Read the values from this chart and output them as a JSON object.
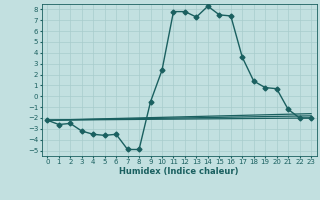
{
  "xlabel": "Humidex (Indice chaleur)",
  "background_color": "#c2e0e0",
  "grid_color": "#a8cccc",
  "line_color": "#1a6060",
  "xlim": [
    -0.5,
    23.5
  ],
  "ylim": [
    -5.5,
    8.5
  ],
  "xticks": [
    0,
    1,
    2,
    3,
    4,
    5,
    6,
    7,
    8,
    9,
    10,
    11,
    12,
    13,
    14,
    15,
    16,
    17,
    18,
    19,
    20,
    21,
    22,
    23
  ],
  "yticks": [
    -5,
    -4,
    -3,
    -2,
    -1,
    0,
    1,
    2,
    3,
    4,
    5,
    6,
    7,
    8
  ],
  "series": [
    {
      "x": [
        0,
        1,
        2,
        3,
        4,
        5,
        6,
        7,
        8,
        9,
        10,
        11,
        12,
        13,
        14,
        15,
        16,
        17,
        18,
        19,
        20,
        21,
        22,
        23
      ],
      "y": [
        -2.2,
        -2.6,
        -2.5,
        -3.2,
        -3.5,
        -3.6,
        -3.5,
        -4.9,
        -4.9,
        -0.5,
        2.4,
        7.8,
        7.8,
        7.3,
        8.3,
        7.5,
        7.4,
        3.6,
        1.4,
        0.8,
        0.7,
        -1.2,
        -2.0,
        -2.0
      ],
      "marker": "D",
      "markersize": 2.5,
      "linewidth": 1.0
    },
    {
      "x": [
        0,
        23
      ],
      "y": [
        -2.2,
        -2.0
      ],
      "marker": null,
      "linewidth": 0.9
    },
    {
      "x": [
        0,
        23
      ],
      "y": [
        -2.2,
        -1.8
      ],
      "marker": null,
      "linewidth": 0.9
    },
    {
      "x": [
        0,
        23
      ],
      "y": [
        -2.2,
        -1.6
      ],
      "marker": null,
      "linewidth": 0.9
    }
  ]
}
